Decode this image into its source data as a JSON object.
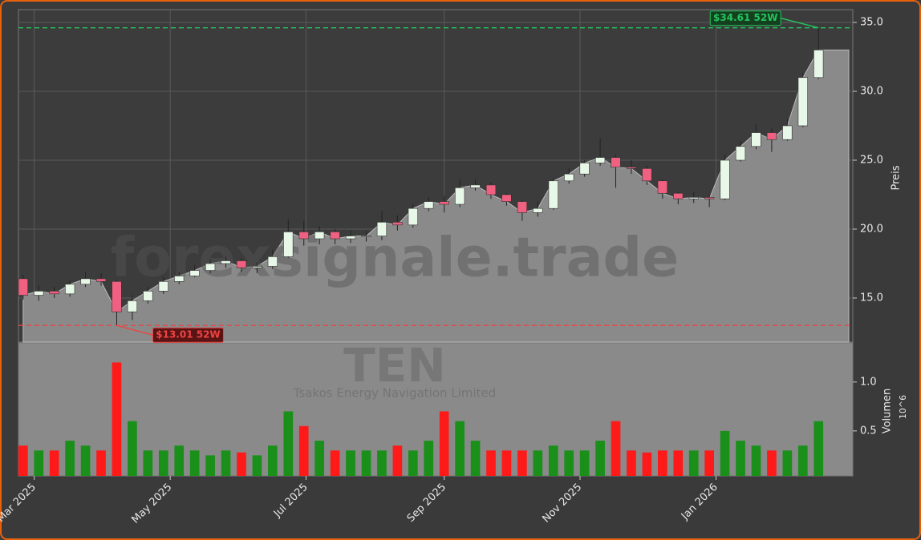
{
  "chart_data": {
    "type": "candlestick",
    "watermark": "forexsignale.trade",
    "ticker": "TEN",
    "company": "Tsakos Energy Navigation Limited",
    "ylabel": "Preis",
    "y2label": "Volumen",
    "y2offset": "10^6",
    "xlim": [
      -0.3,
      53.2
    ],
    "xticks": [
      {
        "value": 0.71,
        "label": "Mar 2025"
      },
      {
        "value": 9.43,
        "label": "May 2025"
      },
      {
        "value": 18.14,
        "label": "Jul 2025"
      },
      {
        "value": 27,
        "label": "Sep 2025"
      },
      {
        "value": 35.71,
        "label": "Nov 2025"
      },
      {
        "value": 44.43,
        "label": "Jan 2026"
      }
    ],
    "ylim": [
      11.8,
      35.93
    ],
    "yticks": [
      {
        "value": 15,
        "label": "15.0"
      },
      {
        "value": 20,
        "label": "20.0"
      },
      {
        "value": 25,
        "label": "25.0"
      },
      {
        "value": 30,
        "label": "30.0"
      },
      {
        "value": 35,
        "label": "35.0"
      }
    ],
    "y2lim": [
      0.04,
      1.4
    ],
    "y2ticks": [
      {
        "value": 0.5,
        "label": "0.5"
      },
      {
        "value": 1,
        "label": "1.0"
      }
    ],
    "grid": true,
    "up_color": "#1a8f1a",
    "down_color": "#ff1a1a",
    "area_color": "#8a8a8a",
    "open": [
      16.4,
      15.2,
      15.5,
      15.3,
      16.0,
      16.4,
      16.2,
      14.0,
      14.8,
      15.5,
      16.2,
      16.6,
      17.0,
      17.5,
      17.7,
      17.2,
      17.3,
      18.0,
      19.8,
      19.3,
      19.8,
      19.3,
      19.5,
      19.5,
      20.5,
      20.3,
      21.5,
      22.0,
      21.8,
      23.0,
      23.2,
      22.5,
      22.0,
      21.2,
      21.5,
      23.5,
      24.0,
      24.8,
      25.2,
      24.5,
      24.4,
      23.5,
      22.6,
      22.2,
      22.3,
      22.2,
      25.0,
      26.0,
      27.0,
      26.5,
      27.5,
      31.0
    ],
    "high": [
      16.7,
      15.9,
      15.8,
      16.3,
      16.9,
      16.8,
      16.3,
      15.2,
      15.8,
      16.5,
      16.9,
      17.4,
      17.8,
      18.0,
      17.9,
      17.6,
      18.5,
      20.7,
      20.6,
      20.2,
      20.0,
      19.9,
      19.9,
      21.3,
      21.0,
      21.8,
      22.3,
      22.4,
      23.6,
      23.6,
      23.4,
      22.6,
      22.1,
      22.0,
      23.7,
      24.4,
      25.0,
      26.6,
      25.4,
      25.0,
      24.6,
      23.6,
      22.7,
      22.7,
      22.5,
      25.4,
      26.4,
      27.6,
      27.3,
      28.0,
      31.3,
      34.61
    ],
    "low": [
      14.9,
      14.8,
      15.0,
      15.1,
      15.8,
      15.9,
      13.01,
      13.4,
      14.6,
      15.3,
      16.0,
      16.5,
      16.8,
      17.2,
      16.9,
      16.8,
      17.1,
      17.9,
      18.8,
      18.9,
      18.9,
      19.0,
      19.1,
      19.2,
      19.9,
      20.1,
      21.3,
      21.2,
      21.6,
      22.8,
      22.2,
      21.7,
      20.6,
      20.9,
      21.4,
      23.3,
      23.8,
      24.6,
      23.0,
      24.0,
      23.2,
      22.2,
      21.8,
      21.9,
      21.6,
      22.1,
      24.9,
      25.8,
      25.6,
      26.4,
      27.4,
      30.9
    ],
    "close": [
      15.2,
      15.5,
      15.3,
      16.0,
      16.4,
      16.2,
      14.0,
      14.8,
      15.5,
      16.2,
      16.6,
      17.0,
      17.5,
      17.7,
      17.2,
      17.3,
      18.0,
      19.8,
      19.3,
      19.8,
      19.3,
      19.5,
      19.5,
      20.5,
      20.3,
      21.5,
      22.0,
      21.8,
      23.0,
      23.2,
      22.5,
      22.0,
      21.2,
      21.5,
      23.5,
      24.0,
      24.8,
      25.2,
      24.5,
      24.4,
      23.5,
      22.6,
      22.2,
      22.3,
      22.2,
      25.0,
      26.0,
      27.0,
      26.5,
      27.5,
      31.0,
      33.0
    ],
    "volume": [
      0.35,
      0.3,
      0.3,
      0.4,
      0.35,
      0.3,
      1.2,
      0.6,
      0.3,
      0.3,
      0.35,
      0.3,
      0.25,
      0.3,
      0.28,
      0.25,
      0.35,
      0.7,
      0.55,
      0.4,
      0.3,
      0.3,
      0.3,
      0.3,
      0.35,
      0.3,
      0.4,
      0.7,
      0.6,
      0.4,
      0.3,
      0.3,
      0.3,
      0.3,
      0.35,
      0.3,
      0.3,
      0.4,
      0.6,
      0.3,
      0.28,
      0.3,
      0.3,
      0.3,
      0.3,
      0.5,
      0.4,
      0.35,
      0.3,
      0.3,
      0.35,
      0.6
    ],
    "annotations": [
      {
        "text": "$34.61 52W",
        "value": 34.61,
        "color": "#22c55e"
      },
      {
        "text": "$13.01 52W",
        "value": 13.01,
        "color": "#ef4444"
      }
    ]
  }
}
